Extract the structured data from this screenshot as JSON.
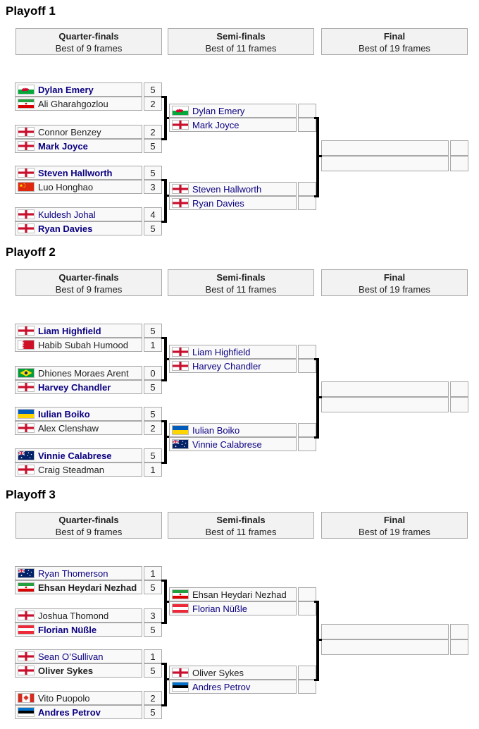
{
  "colors": {
    "link": "#0b0080",
    "text": "#202122",
    "row_bg": "#f9f9f9",
    "header_bg": "#f2f2f2",
    "border": "#a8a8a8",
    "bracket": "#000000"
  },
  "playoffs": [
    {
      "title": "Playoff 1",
      "rounds": [
        {
          "name": "Quarter-finals",
          "format": "Best of 9 frames"
        },
        {
          "name": "Semi-finals",
          "format": "Best of 11 frames"
        },
        {
          "name": "Final",
          "format": "Best of 19 frames"
        }
      ],
      "qf": [
        {
          "players": [
            {
              "flag": "wales",
              "name": "Dylan Emery",
              "score": "5",
              "bold": true,
              "link": true
            },
            {
              "flag": "iran",
              "name": "Ali Gharahgozlou",
              "score": "2",
              "bold": false,
              "link": false
            }
          ]
        },
        {
          "players": [
            {
              "flag": "england",
              "name": "Connor Benzey",
              "score": "2",
              "bold": false,
              "link": false
            },
            {
              "flag": "england",
              "name": "Mark Joyce",
              "score": "5",
              "bold": true,
              "link": true
            }
          ]
        },
        {
          "players": [
            {
              "flag": "england",
              "name": "Steven Hallworth",
              "score": "5",
              "bold": true,
              "link": true
            },
            {
              "flag": "china",
              "name": "Luo Honghao",
              "score": "3",
              "bold": false,
              "link": false
            }
          ]
        },
        {
          "players": [
            {
              "flag": "england",
              "name": "Kuldesh Johal",
              "score": "4",
              "bold": false,
              "link": true
            },
            {
              "flag": "england",
              "name": "Ryan Davies",
              "score": "5",
              "bold": true,
              "link": true
            }
          ]
        }
      ],
      "sf": [
        {
          "players": [
            {
              "flag": "wales",
              "name": "Dylan Emery",
              "score": "",
              "bold": false,
              "link": true
            },
            {
              "flag": "england",
              "name": "Mark Joyce",
              "score": "",
              "bold": false,
              "link": true
            }
          ]
        },
        {
          "players": [
            {
              "flag": "england",
              "name": "Steven Hallworth",
              "score": "",
              "bold": false,
              "link": true
            },
            {
              "flag": "england",
              "name": "Ryan Davies",
              "score": "",
              "bold": false,
              "link": true
            }
          ]
        }
      ],
      "final": [
        {
          "name": "",
          "score": ""
        },
        {
          "name": "",
          "score": ""
        }
      ]
    },
    {
      "title": "Playoff 2",
      "rounds": [
        {
          "name": "Quarter-finals",
          "format": "Best of 9 frames"
        },
        {
          "name": "Semi-finals",
          "format": "Best of 11 frames"
        },
        {
          "name": "Final",
          "format": "Best of 19 frames"
        }
      ],
      "qf": [
        {
          "players": [
            {
              "flag": "england",
              "name": "Liam Highfield",
              "score": "5",
              "bold": true,
              "link": true
            },
            {
              "flag": "bahrain",
              "name": "Habib Subah Humood",
              "score": "1",
              "bold": false,
              "link": false
            }
          ]
        },
        {
          "players": [
            {
              "flag": "brazil",
              "name": "Dhiones Moraes Arent",
              "score": "0",
              "bold": false,
              "link": false
            },
            {
              "flag": "england",
              "name": "Harvey Chandler",
              "score": "5",
              "bold": true,
              "link": true
            }
          ]
        },
        {
          "players": [
            {
              "flag": "ukraine",
              "name": "Iulian Boiko",
              "score": "5",
              "bold": true,
              "link": true
            },
            {
              "flag": "england",
              "name": "Alex Clenshaw",
              "score": "2",
              "bold": false,
              "link": false
            }
          ]
        },
        {
          "players": [
            {
              "flag": "australia",
              "name": "Vinnie Calabrese",
              "score": "5",
              "bold": true,
              "link": true
            },
            {
              "flag": "england",
              "name": "Craig Steadman",
              "score": "1",
              "bold": false,
              "link": false
            }
          ]
        }
      ],
      "sf": [
        {
          "players": [
            {
              "flag": "england",
              "name": "Liam Highfield",
              "score": "",
              "bold": false,
              "link": true
            },
            {
              "flag": "england",
              "name": "Harvey Chandler",
              "score": "",
              "bold": false,
              "link": true
            }
          ]
        },
        {
          "players": [
            {
              "flag": "ukraine",
              "name": "Iulian Boiko",
              "score": "",
              "bold": false,
              "link": true
            },
            {
              "flag": "australia",
              "name": "Vinnie Calabrese",
              "score": "",
              "bold": false,
              "link": true
            }
          ]
        }
      ],
      "final": [
        {
          "name": "",
          "score": ""
        },
        {
          "name": "",
          "score": ""
        }
      ]
    },
    {
      "title": "Playoff 3",
      "rounds": [
        {
          "name": "Quarter-finals",
          "format": "Best of 9 frames"
        },
        {
          "name": "Semi-finals",
          "format": "Best of 11 frames"
        },
        {
          "name": "Final",
          "format": "Best of 19 frames"
        }
      ],
      "qf": [
        {
          "players": [
            {
              "flag": "australia",
              "name": "Ryan Thomerson",
              "score": "1",
              "bold": false,
              "link": true
            },
            {
              "flag": "iran",
              "name": "Ehsan Heydari Nezhad",
              "score": "5",
              "bold": true,
              "link": false
            }
          ]
        },
        {
          "players": [
            {
              "flag": "england",
              "name": "Joshua Thomond",
              "score": "3",
              "bold": false,
              "link": false
            },
            {
              "flag": "austria",
              "name": "Florian Nüßle",
              "score": "5",
              "bold": true,
              "link": true
            }
          ]
        },
        {
          "players": [
            {
              "flag": "england",
              "name": "Sean O’Sullivan",
              "score": "1",
              "bold": false,
              "link": true
            },
            {
              "flag": "england",
              "name": "Oliver Sykes",
              "score": "5",
              "bold": true,
              "link": false
            }
          ]
        },
        {
          "players": [
            {
              "flag": "canada",
              "name": "Vito Puopolo",
              "score": "2",
              "bold": false,
              "link": false
            },
            {
              "flag": "estonia",
              "name": "Andres Petrov",
              "score": "5",
              "bold": true,
              "link": true
            }
          ]
        }
      ],
      "sf": [
        {
          "players": [
            {
              "flag": "iran",
              "name": "Ehsan Heydari Nezhad",
              "score": "",
              "bold": false,
              "link": false
            },
            {
              "flag": "austria",
              "name": "Florian Nüßle",
              "score": "",
              "bold": false,
              "link": true
            }
          ]
        },
        {
          "players": [
            {
              "flag": "england",
              "name": "Oliver Sykes",
              "score": "",
              "bold": false,
              "link": false
            },
            {
              "flag": "estonia",
              "name": "Andres Petrov",
              "score": "",
              "bold": false,
              "link": true
            }
          ]
        }
      ],
      "final": [
        {
          "name": "",
          "score": ""
        },
        {
          "name": "",
          "score": ""
        }
      ]
    }
  ]
}
